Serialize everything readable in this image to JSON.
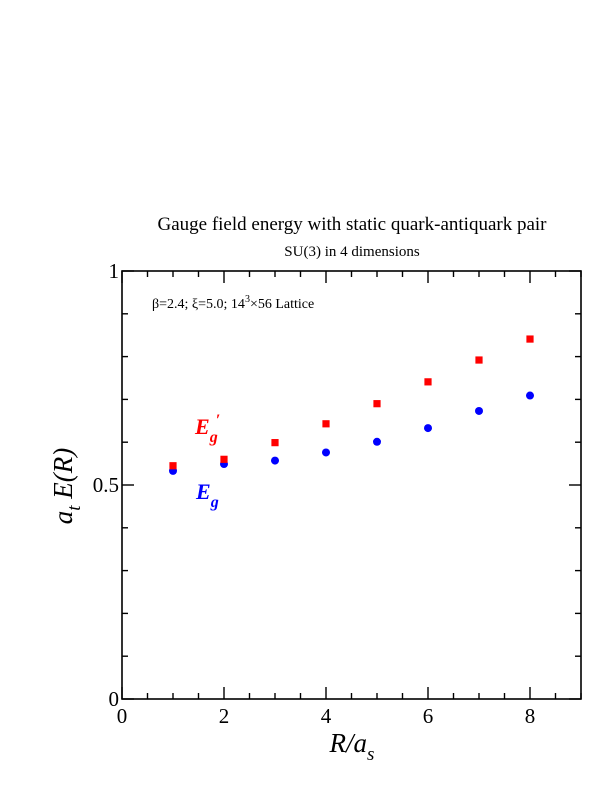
{
  "chart_data": {
    "type": "scatter",
    "title": "Gauge field energy with static quark-antiquark pair",
    "subtitle": "SU(3) in 4 dimensions",
    "annotation": "β=2.4; ξ=5.0; 14³×56 Lattice",
    "xlabel": "R/a_s",
    "ylabel": "a_t E(R)",
    "xlim": [
      0,
      9
    ],
    "ylim": [
      0,
      1
    ],
    "xticks": [
      0,
      2,
      4,
      6,
      8
    ],
    "xtick_labels": [
      "0",
      "2",
      "4",
      "6",
      "8"
    ],
    "yticks": [
      0,
      0.5,
      1
    ],
    "ytick_labels": [
      "0",
      "0.5",
      "1"
    ],
    "grid": false,
    "series": [
      {
        "name": "E_g",
        "marker": "circle",
        "color": "#0000ff",
        "x": [
          1,
          2,
          3,
          4,
          5,
          6,
          7,
          8
        ],
        "values": [
          0.533,
          0.549,
          0.557,
          0.576,
          0.601,
          0.633,
          0.673,
          0.709
        ]
      },
      {
        "name": "E_g′",
        "marker": "square",
        "color": "#ff0000",
        "x": [
          1,
          2,
          3,
          4,
          5,
          6,
          7,
          8
        ],
        "values": [
          0.545,
          0.56,
          0.599,
          0.643,
          0.69,
          0.741,
          0.792,
          0.841
        ]
      }
    ]
  }
}
